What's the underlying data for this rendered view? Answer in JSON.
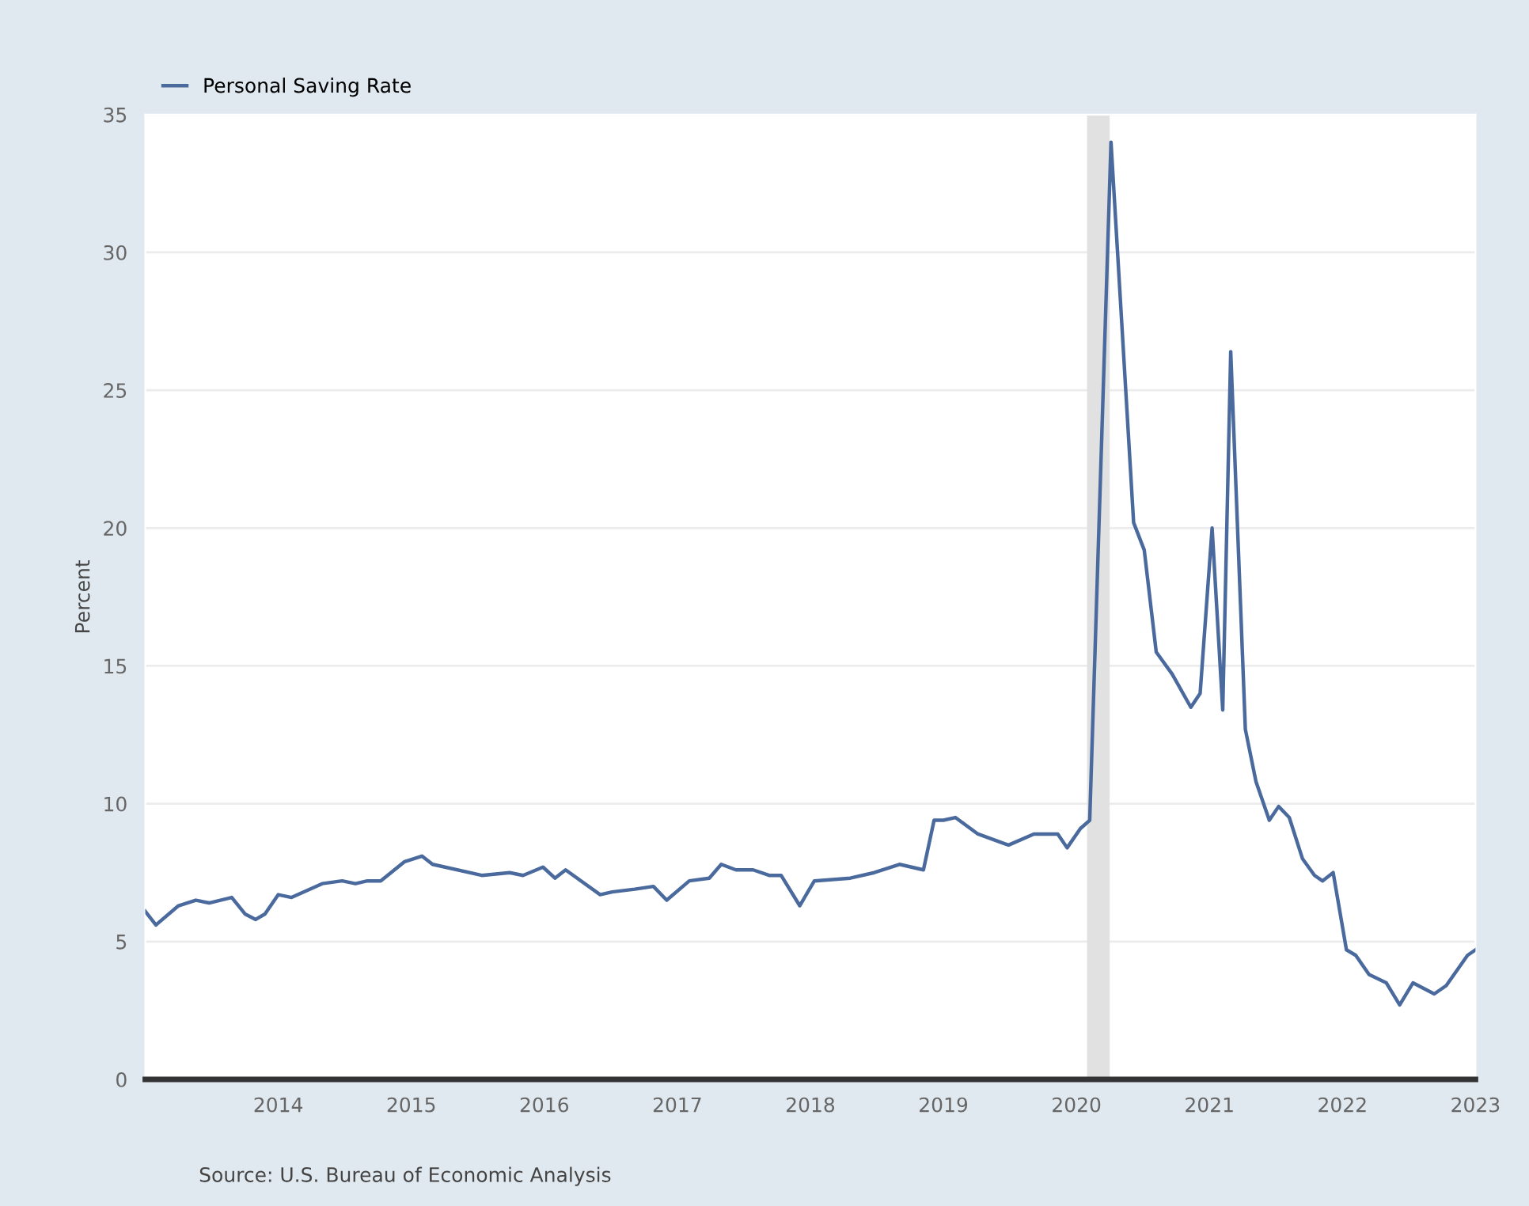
{
  "chart_data": {
    "type": "line",
    "ylabel": "Percent",
    "x": [
      2013.0,
      2013.08,
      2013.25,
      2013.38,
      2013.48,
      2013.65,
      2013.75,
      2013.83,
      2013.9,
      2014.0,
      2014.1,
      2014.33,
      2014.48,
      2014.58,
      2014.67,
      2014.77,
      2014.95,
      2015.08,
      2015.16,
      2015.53,
      2015.74,
      2015.84,
      2015.99,
      2016.08,
      2016.16,
      2016.42,
      2016.51,
      2016.68,
      2016.82,
      2016.92,
      2017.09,
      2017.24,
      2017.33,
      2017.44,
      2017.57,
      2017.69,
      2017.78,
      2017.92,
      2018.03,
      2018.3,
      2018.48,
      2018.67,
      2018.85,
      2018.93,
      2019.0,
      2019.09,
      2019.26,
      2019.49,
      2019.68,
      2019.86,
      2019.93,
      2020.03,
      2020.1,
      2020.26,
      2020.43,
      2020.51,
      2020.6,
      2020.72,
      2020.86,
      2020.93,
      2021.02,
      2021.1,
      2021.16,
      2021.27,
      2021.35,
      2021.45,
      2021.52,
      2021.6,
      2021.7,
      2021.79,
      2021.85,
      2021.93,
      2022.03,
      2022.1,
      2022.2,
      2022.33,
      2022.43,
      2022.53,
      2022.69,
      2022.78,
      2022.94,
      2023.0
    ],
    "series": [
      {
        "name": "Personal Saving Rate",
        "color": "#4a6a9e",
        "values": [
          6.1,
          5.6,
          6.3,
          6.5,
          6.4,
          6.6,
          6.0,
          5.8,
          6.0,
          6.7,
          6.6,
          7.1,
          7.2,
          7.1,
          7.2,
          7.2,
          7.9,
          8.1,
          7.8,
          7.4,
          7.5,
          7.4,
          7.7,
          7.3,
          7.6,
          6.7,
          6.8,
          6.9,
          7.0,
          6.5,
          7.2,
          7.3,
          7.8,
          7.6,
          7.6,
          7.4,
          7.4,
          6.3,
          7.2,
          7.3,
          7.5,
          7.8,
          7.6,
          9.4,
          9.4,
          9.5,
          8.9,
          8.5,
          8.9,
          8.9,
          8.4,
          9.1,
          9.4,
          34.0,
          20.2,
          19.2,
          15.5,
          14.7,
          13.5,
          14.0,
          20.0,
          13.4,
          26.4,
          12.7,
          10.8,
          9.4,
          9.9,
          9.5,
          8.0,
          7.4,
          7.2,
          7.5,
          4.7,
          4.5,
          3.8,
          3.5,
          2.7,
          3.5,
          3.1,
          3.4,
          4.5,
          4.7
        ]
      }
    ],
    "xlim": [
      2013,
      2023
    ],
    "xticks": [
      2014,
      2015,
      2016,
      2017,
      2018,
      2019,
      2020,
      2021,
      2022,
      2023
    ],
    "ylim": [
      0,
      35
    ],
    "yticks": [
      0,
      5,
      10,
      15,
      20,
      25,
      30,
      35
    ],
    "bands": [
      {
        "axis": "x",
        "from": 2020.08,
        "to": 2020.25,
        "color": "#e1e1e1"
      }
    ],
    "grid": "y",
    "legend": "top left",
    "line_style": "solid",
    "marker": "none",
    "annotations": [
      "Source: U.S. Bureau of Economic Analysis"
    ]
  }
}
